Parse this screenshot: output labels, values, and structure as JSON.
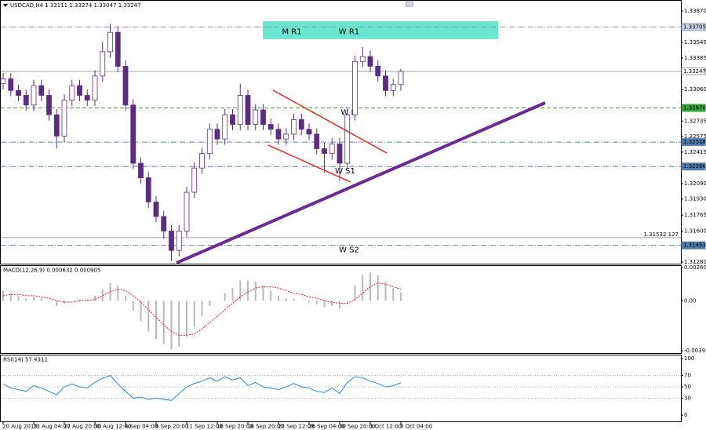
{
  "chart_data": [
    {
      "type": "candlestick",
      "title": "USDCAD,H4  1.33111 1.33274 1.33047 1.33247",
      "categories": [
        "20 Aug 2019",
        null,
        null,
        null,
        "23 Aug 04:00",
        null,
        null,
        null,
        "27 Aug 20:00",
        null,
        null,
        null,
        "30 Aug 12:00",
        null,
        null,
        null,
        "4 Sep 04:00",
        null,
        null,
        null,
        "6 Sep 20:00",
        null,
        null,
        null,
        "11 Sep 12:00",
        null,
        null,
        null,
        "16 Sep 20:00",
        null,
        null,
        null,
        "18 Sep 20:00",
        null,
        null,
        null,
        "23 Sep 12:00",
        null,
        null,
        null,
        "26 Sep 04:00",
        null,
        null,
        null,
        "30 Sep 20:00",
        null,
        null,
        null,
        "3 Oct 12:00",
        null,
        null,
        null,
        "8 Oct 04:00"
      ],
      "open": [
        1.3312,
        1.3317,
        1.3305,
        1.33,
        1.329,
        1.331,
        1.33,
        1.328,
        1.3258,
        1.3295,
        1.331,
        1.33,
        1.3295,
        1.332,
        1.3345,
        1.3365,
        1.333,
        1.329,
        1.323,
        1.3215,
        1.319,
        1.3175,
        1.316,
        1.314,
        1.316,
        1.32,
        1.3225,
        1.324,
        1.3265,
        1.3255,
        1.328,
        1.327,
        1.33,
        1.327,
        1.3285,
        1.327,
        1.3265,
        1.3255,
        1.326,
        1.3275,
        1.3265,
        1.326,
        1.3245,
        1.324,
        1.325,
        1.323,
        1.328,
        1.3335,
        1.334,
        1.333,
        1.332,
        1.3305,
        1.33111
      ],
      "high": [
        1.3323,
        1.3323,
        1.3311,
        1.3306,
        1.3316,
        1.3316,
        1.3306,
        1.3286,
        1.3301,
        1.3316,
        1.3316,
        1.3306,
        1.3326,
        1.3355,
        1.3374,
        1.3371,
        1.3336,
        1.3296,
        1.3236,
        1.3221,
        1.3196,
        1.3181,
        1.3166,
        1.3166,
        1.3206,
        1.3231,
        1.3246,
        1.3271,
        1.3271,
        1.3286,
        1.3286,
        1.3312,
        1.3306,
        1.3291,
        1.3291,
        1.3276,
        1.3271,
        1.3266,
        1.3281,
        1.3281,
        1.3271,
        1.3266,
        1.3251,
        1.3256,
        1.3256,
        1.3286,
        1.3341,
        1.335,
        1.3346,
        1.3336,
        1.3326,
        1.3317,
        1.33274
      ],
      "low": [
        1.3306,
        1.3299,
        1.3294,
        1.3284,
        1.3284,
        1.3294,
        1.3274,
        1.3245,
        1.3252,
        1.3289,
        1.3294,
        1.3289,
        1.3289,
        1.3314,
        1.3339,
        1.3324,
        1.3284,
        1.3224,
        1.3209,
        1.3184,
        1.3169,
        1.3152,
        1.3129,
        1.3134,
        1.3154,
        1.3194,
        1.3219,
        1.3234,
        1.3249,
        1.3249,
        1.3264,
        1.3264,
        1.3264,
        1.3264,
        1.3264,
        1.3259,
        1.3249,
        1.3249,
        1.3254,
        1.3259,
        1.3254,
        1.3239,
        1.322,
        1.3234,
        1.3212,
        1.3224,
        1.3274,
        1.3329,
        1.3324,
        1.3314,
        1.3299,
        1.3299,
        1.33047
      ],
      "close": [
        1.3317,
        1.3305,
        1.33,
        1.329,
        1.331,
        1.33,
        1.328,
        1.3258,
        1.3295,
        1.331,
        1.33,
        1.3295,
        1.332,
        1.3345,
        1.3365,
        1.333,
        1.329,
        1.323,
        1.3215,
        1.319,
        1.3175,
        1.316,
        1.314,
        1.316,
        1.32,
        1.3225,
        1.324,
        1.3265,
        1.3255,
        1.328,
        1.327,
        1.33,
        1.327,
        1.3285,
        1.327,
        1.3265,
        1.3255,
        1.326,
        1.3275,
        1.3265,
        1.326,
        1.3245,
        1.324,
        1.325,
        1.323,
        1.328,
        1.3335,
        1.334,
        1.333,
        1.332,
        1.3305,
        1.33111,
        1.33247
      ],
      "up_color": "#ffffff",
      "down_color": "#5a2d82",
      "wick_color": "#5a2d82",
      "ylim": [
        1.31256,
        1.33943
      ],
      "yticks": [
        {
          "value": 1.3387,
          "label": "1.33870"
        },
        {
          "value": 1.33545,
          "label": "1.33545"
        },
        {
          "value": 1.33385,
          "label": "1.33385"
        },
        {
          "value": 1.3306,
          "label": "1.33060"
        },
        {
          "value": 1.32735,
          "label": "1.32735"
        },
        {
          "value": 1.32575,
          "label": "1.32575"
        },
        {
          "value": 1.32415,
          "label": "1.32415"
        },
        {
          "value": 1.3209,
          "label": "1.32090"
        },
        {
          "value": 1.3193,
          "label": "1.31930"
        },
        {
          "value": 1.31765,
          "label": "1.31765"
        },
        {
          "value": 1.316,
          "label": "1.31600"
        },
        {
          "value": 1.3128,
          "label": "1.31280"
        }
      ],
      "levels": [
        {
          "value": 1.33705,
          "label": "1.33705",
          "color": "#8a9bb0",
          "box": "#c8d4e4",
          "text_color": "#203040",
          "style": "dashdot"
        },
        {
          "value": 1.33247,
          "label": "1.33247",
          "color": "#a0a0a0",
          "box": "#ffffff",
          "text_color": "#000000",
          "style": "solid"
        },
        {
          "value": 1.3287,
          "label": "1.32870",
          "color": "#3aa53a",
          "box": "#3aa53a",
          "text_color": "#ffffff",
          "style": "dashed"
        },
        {
          "value": 1.32518,
          "label": "1.32518",
          "color": "#5d86b0",
          "box": "#4f7cab",
          "text_color": "#ffffff",
          "style": "dashdot"
        },
        {
          "value": 1.32266,
          "label": "1.32266",
          "color": "#5d86b0",
          "box": "#4f7cab",
          "text_color": "#ffffff",
          "style": "dashdot"
        },
        {
          "value": 1.31453,
          "label": "1.31453",
          "color": "#5d86b0",
          "box": "#4f7cab",
          "text_color": "#ffffff",
          "style": "dashdot"
        },
        {
          "value": 1.31532,
          "label": "1.31532  127",
          "color": "#a8a8a8",
          "text_color": "#707070",
          "style": "solid"
        }
      ],
      "zones": [
        {
          "from": 1.33765,
          "to": 1.3358,
          "color": "#4fe3c9"
        }
      ],
      "annotations": [
        {
          "text": "M R1",
          "value": 1.33705,
          "color": "#506070"
        },
        {
          "text": "W R1",
          "value": 1.33705,
          "color": "#506070"
        },
        {
          "text": "W P",
          "value": 1.3287,
          "color": "#3aa53a"
        },
        {
          "text": "W S1",
          "value": 1.32266,
          "color": "#5d86b0"
        },
        {
          "text": "W S2",
          "value": 1.31453,
          "color": "#5d86b0"
        }
      ]
    },
    {
      "type": "macd",
      "title": "MACD(12,26,9) 0.000632 0.000905",
      "ylim": [
        -0.004102,
        0.002727
      ],
      "yticks": [
        0.002604,
        {
          "value": 0,
          "label": "0.00"
        },
        -0.003917
      ],
      "series": [
        {
          "kind": "histogram",
          "color": "#b8b8b8",
          "values": [
            0.0008,
            0.0006,
            0.0004,
            0.0002,
            0.0003,
            0.0002,
            0,
            -0.0004,
            -0.0002,
            0,
            0.0001,
            0.0001,
            0.0004,
            0.0009,
            0.0014,
            0.0012,
            0.0004,
            -0.0008,
            -0.0016,
            -0.0024,
            -0.003,
            -0.0034,
            -0.0038,
            -0.0036,
            -0.0028,
            -0.002,
            -0.0012,
            -0.0004,
            0,
            0.0006,
            0.001,
            0.0016,
            0.0016,
            0.0015,
            0.0012,
            0.0008,
            0.0004,
            0.0002,
            0.0002,
            0,
            -0.0001,
            -0.0003,
            -0.0005,
            -0.0004,
            -0.0006,
            -0.0002,
            0.0012,
            0.002,
            0.0022,
            0.002,
            0.0015,
            0.001,
            0.000632
          ]
        },
        {
          "kind": "line",
          "color": "#e02020",
          "values": [
            0.0004,
            0.0005,
            0.0005,
            0.0004,
            0.0004,
            0.0003,
            0.0002,
            0,
            -0.0001,
            -0.0001,
            0,
            0,
            0.0001,
            0.0004,
            0.0007,
            0.0009,
            0.0008,
            0.0004,
            -0.0001,
            -0.0007,
            -0.0013,
            -0.0019,
            -0.0024,
            -0.0027,
            -0.0027,
            -0.0026,
            -0.0022,
            -0.0017,
            -0.0012,
            -0.0007,
            -0.0002,
            0.0003,
            0.0007,
            0.001,
            0.0011,
            0.0011,
            0.001,
            0.0008,
            0.0006,
            0.0005,
            0.0003,
            0.0002,
            0,
            -0.0001,
            -0.0002,
            -0.0002,
            0.0001,
            0.0006,
            0.0011,
            0.0014,
            0.0013,
            0.0011,
            0.000905
          ]
        }
      ]
    },
    {
      "type": "line",
      "title": "RSI(14) 57.4311",
      "ylim": [
        -12.5,
        105.6
      ],
      "yticks": [
        100,
        70,
        50,
        30,
        0
      ],
      "grid": true,
      "series": [
        {
          "kind": "line",
          "color": "#2f86d6",
          "values": [
            55,
            48,
            45,
            42,
            52,
            48,
            42,
            36,
            50,
            55,
            50,
            48,
            58,
            65,
            70,
            55,
            42,
            30,
            32,
            28,
            30,
            28,
            26,
            38,
            50,
            56,
            60,
            66,
            60,
            68,
            62,
            66,
            52,
            58,
            50,
            48,
            45,
            50,
            56,
            50,
            48,
            42,
            40,
            48,
            38,
            58,
            68,
            66,
            60,
            56,
            50,
            52,
            57.4311
          ]
        }
      ]
    }
  ]
}
